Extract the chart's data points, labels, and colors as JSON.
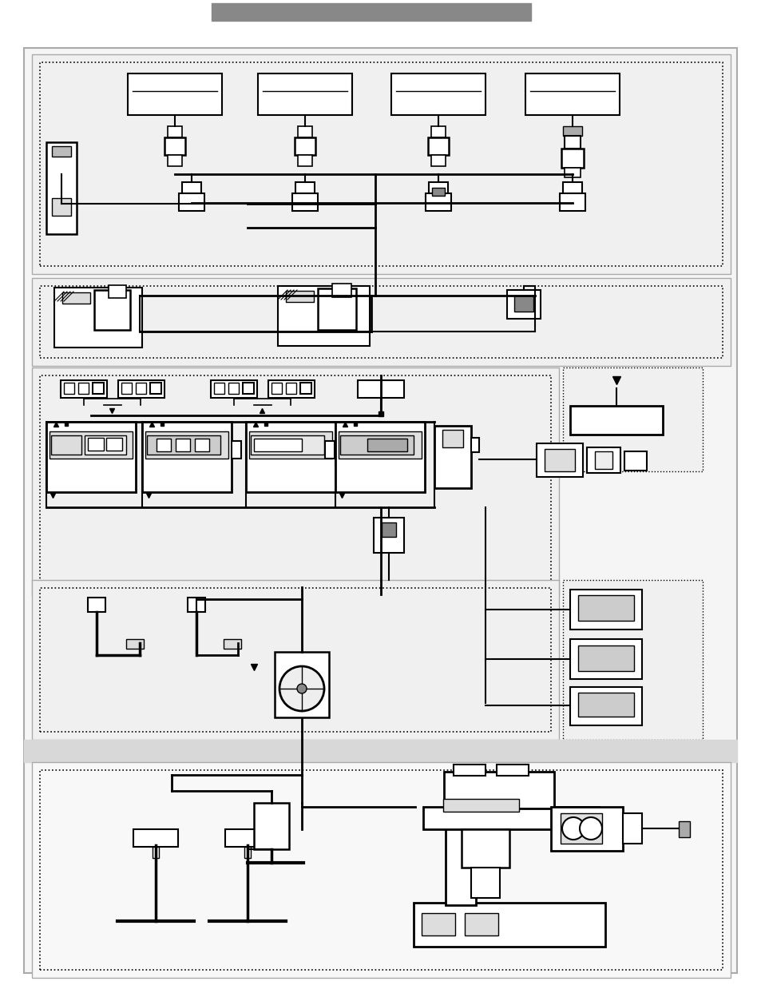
{
  "bg": "#ffffff",
  "gray_bar": "#888888",
  "outer_fill": "#f5f5f5",
  "section_fill": "#eeeeee",
  "bot_fill": "#e0e0e0",
  "white": "#ffffff",
  "black": "#000000",
  "dk_gray": "#555555",
  "md_gray": "#999999",
  "lt_gray": "#cccccc"
}
